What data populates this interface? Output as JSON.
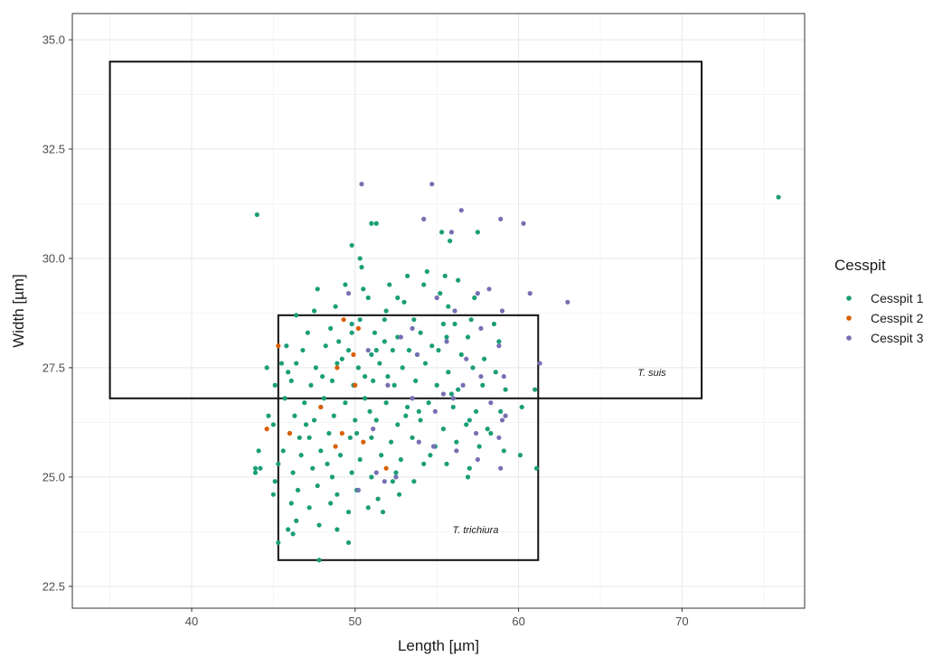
{
  "chart_data": {
    "type": "scatter",
    "title": "",
    "xlabel": "Length [µm]",
    "ylabel": "Width [µm]",
    "xlim": [
      32.7,
      77.5
    ],
    "ylim": [
      22.0,
      35.6
    ],
    "x_ticks": [
      40,
      50,
      60,
      70
    ],
    "x_tick_labels": [
      "40",
      "50",
      "60",
      "70"
    ],
    "y_ticks": [
      22.5,
      25.0,
      27.5,
      30.0,
      32.5,
      35.0
    ],
    "y_tick_labels": [
      "22.5",
      "25.0",
      "27.5",
      "30.0",
      "32.5",
      "35.0"
    ],
    "grid": true,
    "legend": {
      "title": "Cesspit",
      "position": "right",
      "entries": [
        {
          "label": "Cesspit 1",
          "color": "#1b9e77"
        },
        {
          "label": "Cesspit 2",
          "color": "#d95f02"
        },
        {
          "label": "Cesspit 3",
          "color": "#7570b3"
        }
      ]
    },
    "reference_boxes": [
      {
        "label": "T. suis",
        "x_min": 35.0,
        "x_max": 71.2,
        "y_min": 26.8,
        "y_max": 34.5
      },
      {
        "label": "T. trichiura",
        "x_min": 45.3,
        "x_max": 61.2,
        "y_min": 23.1,
        "y_max": 28.7
      }
    ],
    "series": [
      {
        "name": "Cesspit 1",
        "color": "#1b9e77",
        "points": [
          [
            44.0,
            31.0
          ],
          [
            75.9,
            31.4
          ],
          [
            51.0,
            30.8
          ],
          [
            51.3,
            30.8
          ],
          [
            55.3,
            30.6
          ],
          [
            57.5,
            30.6
          ],
          [
            49.8,
            30.3
          ],
          [
            55.8,
            30.4
          ],
          [
            50.3,
            30.0
          ],
          [
            50.4,
            29.8
          ],
          [
            53.2,
            29.6
          ],
          [
            54.4,
            29.7
          ],
          [
            55.5,
            29.6
          ],
          [
            56.3,
            29.5
          ],
          [
            52.1,
            29.4
          ],
          [
            49.4,
            29.4
          ],
          [
            47.7,
            29.3
          ],
          [
            50.5,
            29.3
          ],
          [
            54.2,
            29.4
          ],
          [
            57.3,
            29.1
          ],
          [
            53.0,
            29.0
          ],
          [
            55.7,
            28.9
          ],
          [
            48.8,
            28.9
          ],
          [
            51.9,
            28.8
          ],
          [
            46.4,
            28.7
          ],
          [
            49.8,
            28.5
          ],
          [
            50.3,
            28.6
          ],
          [
            51.8,
            28.6
          ],
          [
            53.6,
            28.6
          ],
          [
            55.4,
            28.5
          ],
          [
            57.1,
            28.6
          ],
          [
            58.5,
            28.5
          ],
          [
            47.1,
            28.3
          ],
          [
            48.5,
            28.4
          ],
          [
            49.8,
            28.3
          ],
          [
            51.2,
            28.3
          ],
          [
            52.6,
            28.2
          ],
          [
            54.0,
            28.3
          ],
          [
            55.6,
            28.2
          ],
          [
            56.9,
            28.2
          ],
          [
            58.8,
            28.1
          ],
          [
            45.8,
            28.0
          ],
          [
            46.8,
            27.9
          ],
          [
            48.2,
            28.0
          ],
          [
            49.6,
            27.9
          ],
          [
            51.0,
            27.8
          ],
          [
            52.3,
            27.9
          ],
          [
            53.8,
            27.8
          ],
          [
            55.1,
            27.9
          ],
          [
            56.5,
            27.8
          ],
          [
            57.9,
            27.7
          ],
          [
            45.5,
            27.6
          ],
          [
            46.4,
            27.6
          ],
          [
            47.6,
            27.5
          ],
          [
            48.9,
            27.6
          ],
          [
            50.2,
            27.5
          ],
          [
            51.5,
            27.6
          ],
          [
            52.9,
            27.5
          ],
          [
            54.3,
            27.6
          ],
          [
            55.7,
            27.4
          ],
          [
            57.2,
            27.5
          ],
          [
            58.6,
            27.4
          ],
          [
            44.6,
            27.5
          ],
          [
            45.1,
            27.1
          ],
          [
            46.1,
            27.2
          ],
          [
            47.3,
            27.1
          ],
          [
            48.6,
            27.2
          ],
          [
            49.9,
            27.1
          ],
          [
            51.1,
            27.2
          ],
          [
            52.4,
            27.1
          ],
          [
            53.7,
            27.2
          ],
          [
            55.0,
            27.1
          ],
          [
            56.3,
            27.0
          ],
          [
            57.8,
            27.1
          ],
          [
            59.2,
            27.0
          ],
          [
            61.0,
            27.0
          ],
          [
            45.7,
            26.8
          ],
          [
            46.9,
            26.7
          ],
          [
            48.1,
            26.8
          ],
          [
            49.4,
            26.7
          ],
          [
            50.6,
            26.8
          ],
          [
            51.9,
            26.7
          ],
          [
            53.2,
            26.6
          ],
          [
            54.5,
            26.7
          ],
          [
            56.0,
            26.6
          ],
          [
            57.4,
            26.5
          ],
          [
            58.9,
            26.5
          ],
          [
            60.2,
            26.6
          ],
          [
            44.7,
            26.4
          ],
          [
            46.3,
            26.4
          ],
          [
            47.5,
            26.3
          ],
          [
            48.7,
            26.4
          ],
          [
            50.0,
            26.3
          ],
          [
            51.3,
            26.3
          ],
          [
            52.6,
            26.2
          ],
          [
            54.0,
            26.3
          ],
          [
            55.4,
            26.1
          ],
          [
            56.8,
            26.2
          ],
          [
            58.1,
            26.1
          ],
          [
            45.0,
            26.2
          ],
          [
            46.0,
            26.0
          ],
          [
            47.2,
            25.9
          ],
          [
            48.4,
            26.0
          ],
          [
            49.7,
            25.9
          ],
          [
            51.0,
            25.9
          ],
          [
            52.2,
            25.8
          ],
          [
            53.5,
            25.9
          ],
          [
            54.9,
            25.7
          ],
          [
            56.2,
            25.8
          ],
          [
            57.6,
            25.7
          ],
          [
            59.1,
            25.6
          ],
          [
            60.1,
            25.5
          ],
          [
            44.1,
            25.6
          ],
          [
            45.6,
            25.6
          ],
          [
            46.7,
            25.5
          ],
          [
            47.9,
            25.6
          ],
          [
            49.1,
            25.5
          ],
          [
            50.3,
            25.4
          ],
          [
            51.6,
            25.5
          ],
          [
            52.8,
            25.4
          ],
          [
            54.2,
            25.3
          ],
          [
            55.6,
            25.3
          ],
          [
            57.0,
            25.2
          ],
          [
            61.1,
            25.2
          ],
          [
            44.2,
            25.2
          ],
          [
            45.3,
            25.3
          ],
          [
            46.2,
            25.1
          ],
          [
            47.4,
            25.2
          ],
          [
            48.6,
            25.0
          ],
          [
            49.8,
            25.1
          ],
          [
            51.0,
            25.0
          ],
          [
            52.3,
            24.9
          ],
          [
            53.6,
            24.9
          ],
          [
            56.9,
            25.0
          ],
          [
            43.9,
            25.1
          ],
          [
            45.1,
            24.9
          ],
          [
            46.5,
            24.7
          ],
          [
            47.7,
            24.8
          ],
          [
            48.9,
            24.6
          ],
          [
            50.1,
            24.7
          ],
          [
            51.4,
            24.5
          ],
          [
            52.7,
            24.6
          ],
          [
            45.0,
            24.6
          ],
          [
            46.1,
            24.4
          ],
          [
            47.2,
            24.3
          ],
          [
            48.5,
            24.4
          ],
          [
            49.6,
            24.2
          ],
          [
            50.8,
            24.3
          ],
          [
            51.7,
            24.2
          ],
          [
            46.4,
            24.0
          ],
          [
            47.8,
            23.9
          ],
          [
            48.9,
            23.8
          ],
          [
            45.9,
            23.8
          ],
          [
            46.2,
            23.7
          ],
          [
            45.3,
            23.5
          ],
          [
            49.6,
            23.5
          ],
          [
            47.8,
            23.1
          ],
          [
            43.9,
            25.2
          ],
          [
            58.3,
            26.0
          ],
          [
            53.1,
            26.4
          ],
          [
            47.0,
            26.2
          ],
          [
            50.6,
            27.3
          ],
          [
            51.8,
            28.1
          ],
          [
            54.7,
            28.0
          ],
          [
            49.2,
            27.7
          ],
          [
            52.0,
            27.3
          ],
          [
            48.0,
            27.3
          ],
          [
            53.3,
            27.9
          ],
          [
            55.9,
            26.9
          ],
          [
            57.0,
            26.3
          ],
          [
            50.1,
            26.0
          ],
          [
            48.3,
            25.3
          ],
          [
            46.6,
            25.9
          ],
          [
            52.5,
            25.1
          ],
          [
            54.6,
            25.5
          ],
          [
            47.9,
            26.6
          ],
          [
            50.9,
            26.5
          ],
          [
            53.9,
            26.5
          ],
          [
            51.3,
            27.9
          ],
          [
            49.0,
            28.1
          ],
          [
            56.1,
            28.5
          ],
          [
            45.9,
            27.4
          ],
          [
            47.5,
            28.8
          ],
          [
            55.2,
            29.2
          ],
          [
            50.8,
            29.1
          ],
          [
            52.6,
            29.1
          ]
        ]
      },
      {
        "name": "Cesspit 2",
        "color": "#d95f02",
        "points": [
          [
            45.3,
            28.0
          ],
          [
            49.3,
            28.6
          ],
          [
            50.2,
            28.4
          ],
          [
            49.9,
            27.8
          ],
          [
            48.9,
            27.5
          ],
          [
            44.6,
            26.1
          ],
          [
            46.0,
            26.0
          ],
          [
            47.9,
            26.6
          ],
          [
            49.2,
            26.0
          ],
          [
            50.5,
            25.8
          ],
          [
            48.8,
            25.7
          ],
          [
            51.9,
            25.2
          ],
          [
            50.0,
            27.1
          ]
        ]
      },
      {
        "name": "Cesspit 3",
        "color": "#7570b3",
        "points": [
          [
            50.4,
            31.7
          ],
          [
            54.7,
            31.7
          ],
          [
            56.5,
            31.1
          ],
          [
            54.2,
            30.9
          ],
          [
            58.9,
            30.9
          ],
          [
            60.3,
            30.8
          ],
          [
            55.9,
            30.6
          ],
          [
            60.7,
            29.2
          ],
          [
            63.0,
            29.0
          ],
          [
            49.6,
            29.2
          ],
          [
            55.0,
            29.1
          ],
          [
            57.5,
            29.2
          ],
          [
            58.2,
            29.3
          ],
          [
            56.1,
            28.8
          ],
          [
            59.0,
            28.8
          ],
          [
            52.8,
            28.2
          ],
          [
            53.5,
            28.4
          ],
          [
            55.6,
            28.1
          ],
          [
            57.7,
            28.4
          ],
          [
            58.8,
            28.0
          ],
          [
            50.8,
            27.9
          ],
          [
            53.8,
            27.8
          ],
          [
            56.8,
            27.7
          ],
          [
            57.7,
            27.3
          ],
          [
            61.3,
            27.6
          ],
          [
            59.1,
            27.3
          ],
          [
            52.0,
            27.1
          ],
          [
            53.5,
            26.8
          ],
          [
            54.9,
            26.5
          ],
          [
            56.0,
            26.8
          ],
          [
            58.3,
            26.7
          ],
          [
            59.2,
            26.4
          ],
          [
            57.4,
            26.0
          ],
          [
            58.8,
            25.9
          ],
          [
            56.2,
            25.6
          ],
          [
            54.8,
            25.7
          ],
          [
            57.5,
            25.4
          ],
          [
            58.9,
            25.2
          ],
          [
            51.3,
            25.1
          ],
          [
            52.5,
            25.0
          ],
          [
            51.8,
            24.9
          ],
          [
            59.0,
            26.3
          ],
          [
            55.4,
            26.9
          ],
          [
            51.1,
            26.1
          ],
          [
            53.9,
            25.8
          ],
          [
            56.6,
            27.1
          ],
          [
            50.2,
            24.7
          ]
        ]
      }
    ]
  }
}
